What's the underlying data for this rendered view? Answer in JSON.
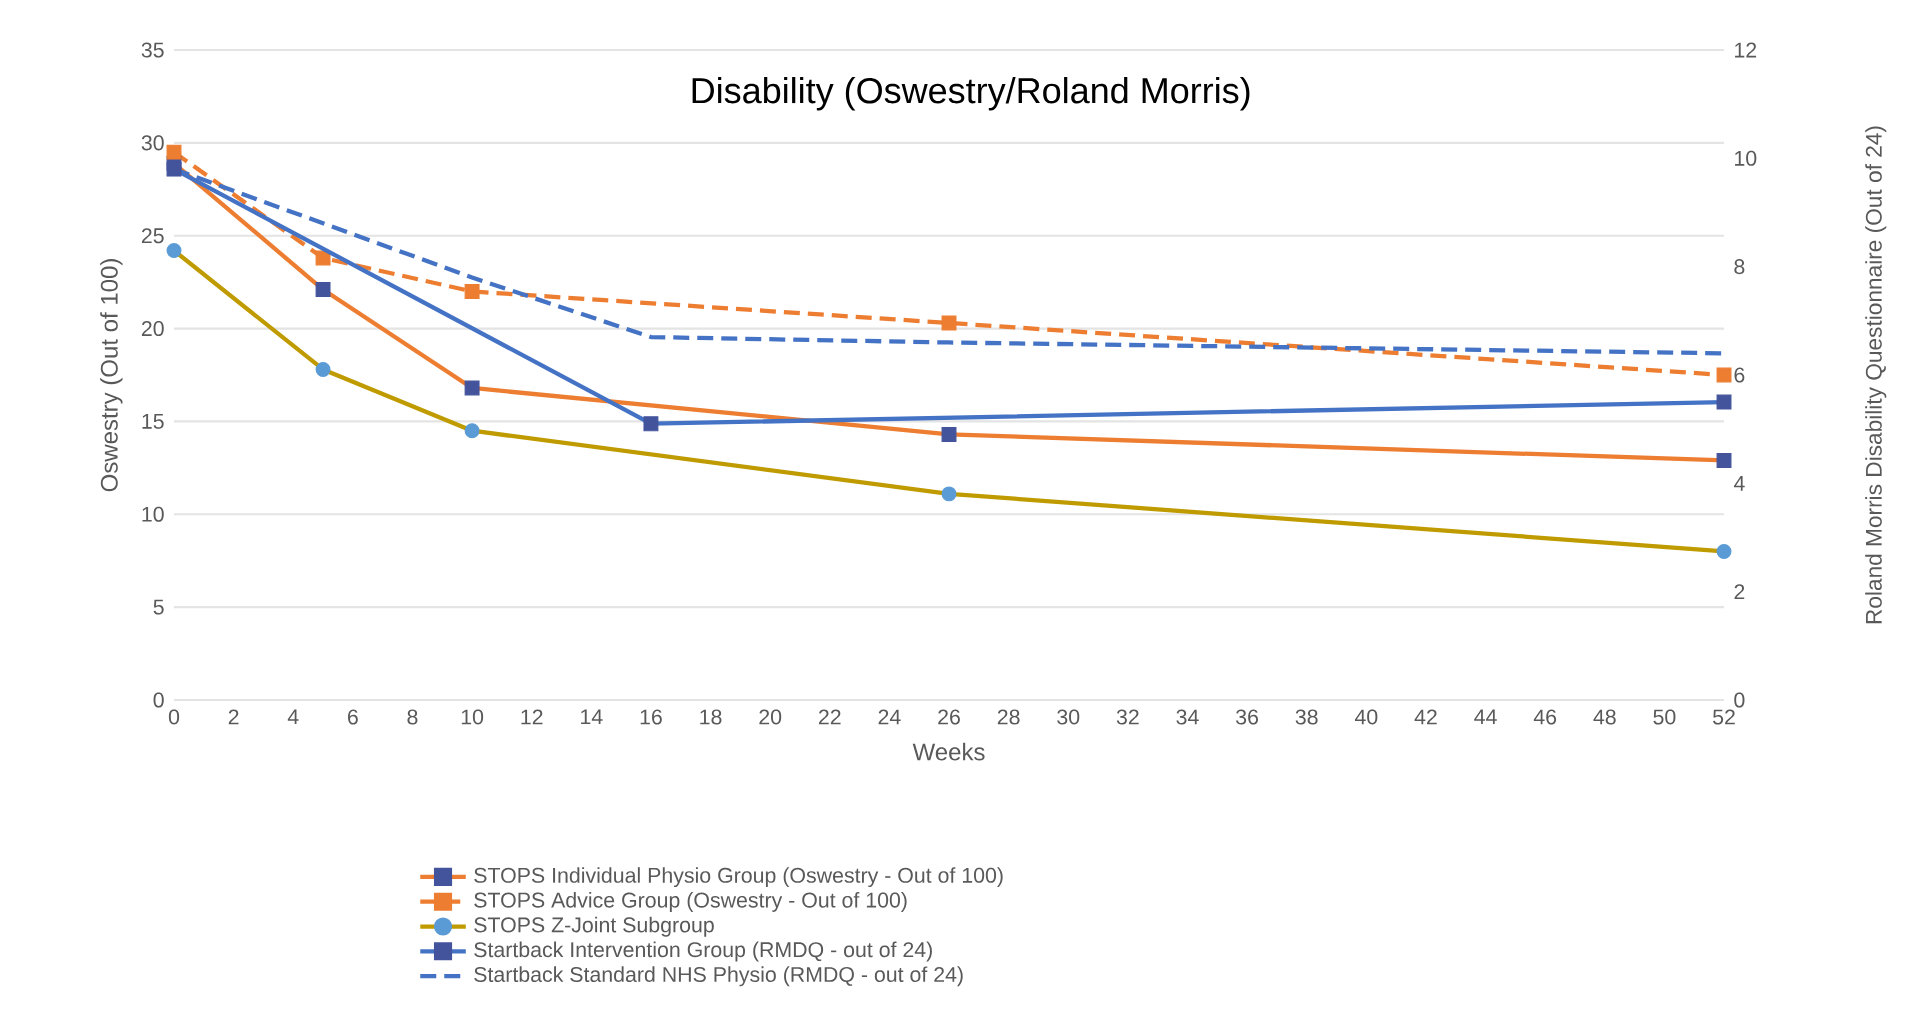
{
  "chart_data": {
    "type": "line",
    "title": "Disability (Oswestry/Roland Morris)",
    "xlabel": "Weeks",
    "ylabel": "Oswestry (Out of 100)",
    "y2label": "Roland Morris Disability Questionnaire (Out of 24)",
    "xlim": [
      0,
      52
    ],
    "xticks": [
      0,
      2,
      4,
      6,
      8,
      10,
      12,
      14,
      16,
      18,
      20,
      22,
      24,
      26,
      28,
      30,
      32,
      34,
      36,
      38,
      40,
      42,
      44,
      46,
      48,
      50,
      52
    ],
    "ylim": [
      0,
      35
    ],
    "yticks": [
      0,
      5,
      10,
      15,
      20,
      25,
      30,
      35
    ],
    "y2lim": [
      0,
      12
    ],
    "y2ticks": [
      0,
      2,
      4,
      6,
      8,
      10,
      12
    ],
    "grid": "y",
    "legend": "bottom",
    "series": [
      {
        "name": "STOPS Individual Physio Group (Oswestry - Out of 100)",
        "color": "#ed7d31",
        "x": [
          0,
          5,
          10,
          26,
          52
        ],
        "values": [
          28.9,
          22.1,
          16.8,
          14.3,
          12.9
        ],
        "marker": "square",
        "line_style": "solid",
        "colors": [
          "#44549c",
          "#44549c",
          "#44549c",
          "#44549c",
          "#44549c"
        ]
      },
      {
        "name": "STOPS Advice Group (Oswestry - Out of 100)",
        "color": "#ed7d31",
        "x": [
          0,
          5,
          10,
          26,
          52
        ],
        "values": [
          29.5,
          23.8,
          22.0,
          20.3,
          17.5
        ],
        "marker": "square",
        "line_style": "dashed",
        "colors": [
          "#ed7d31",
          "#ed7d31",
          "#ed7d31",
          "#ed7d31",
          "#ed7d31"
        ]
      },
      {
        "name": "STOPS Z-Joint Subgroup",
        "color": "#bf9b00",
        "x": [
          0,
          5,
          10,
          26,
          52
        ],
        "values": [
          24.2,
          17.8,
          14.5,
          11.1,
          8.0
        ],
        "marker": "circle",
        "line_style": "solid",
        "colors": [
          "#5b9bd5",
          "#5b9bd5",
          "#5b9bd5",
          "#5b9bd5",
          "#5b9bd5"
        ]
      },
      {
        "name": "Startback Intervention Group (RMDQ - out of 24)",
        "color": "#4472c4",
        "axis": "y2",
        "x": [
          0,
          16,
          52
        ],
        "values": [
          9.8,
          5.1,
          5.5
        ],
        "marker": "square",
        "line_style": "solid",
        "colors": [
          "#44549c",
          "#44549c",
          "#44549c"
        ]
      },
      {
        "name": "Startback Standard NHS Physio (RMDQ - out of 24)",
        "color": "#4472c4",
        "axis": "y2",
        "x": [
          0,
          10,
          16,
          26,
          52
        ],
        "values": [
          9.8,
          7.8,
          6.7,
          6.6,
          6.4
        ],
        "marker": "none",
        "line_style": "dashed"
      }
    ]
  }
}
